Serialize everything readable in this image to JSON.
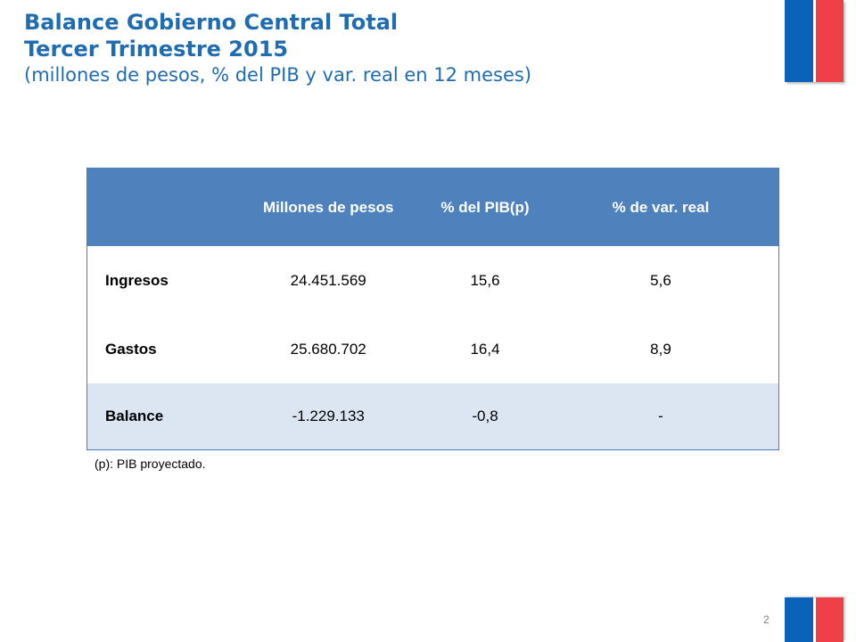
{
  "header": {
    "title_line1": "Balance Gobierno Central Total",
    "title_line2": "Tercer Trimestre 2015",
    "subtitle": "(millones de pesos, % del PIB y var. real en 12 meses)"
  },
  "table": {
    "columns": [
      "",
      "Millones de pesos",
      "% del PIB(p)",
      "% de var. real"
    ],
    "rows": [
      {
        "label": "Ingresos",
        "millones": "24.451.569",
        "pib": "15,6",
        "var": "5,6"
      },
      {
        "label": "Gastos",
        "millones": "25.680.702",
        "pib": "16,4",
        "var": "8,9"
      },
      {
        "label": "Balance",
        "millones": "-1.229.133",
        "pib": "-0,8",
        "var": "-"
      }
    ]
  },
  "note": "(p): PIB proyectado.",
  "page_number": "2",
  "colors": {
    "title": "#1f6cb0",
    "table_header": "#4f81bd",
    "balance_row": "#dce6f2",
    "flag_blue": "#0a63b8",
    "flag_red": "#ef4048"
  }
}
